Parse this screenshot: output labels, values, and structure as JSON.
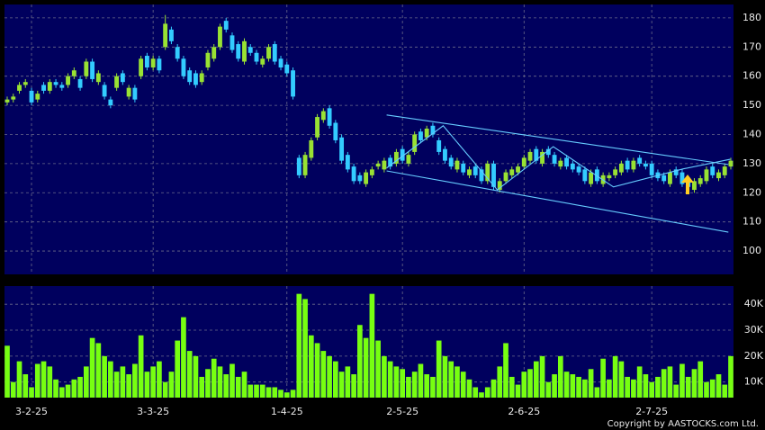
{
  "chart_data": {
    "type": "candlestick",
    "categories": [
      null,
      null,
      null,
      null,
      "3-2-25",
      null,
      null,
      null,
      null,
      null,
      null,
      null,
      null,
      null,
      null,
      null,
      null,
      null,
      null,
      null,
      null,
      null,
      null,
      null,
      "3-3-25",
      null,
      null,
      null,
      null,
      null,
      null,
      null,
      null,
      null,
      null,
      null,
      null,
      null,
      null,
      null,
      null,
      null,
      null,
      null,
      null,
      null,
      "1-4-25",
      null,
      null,
      null,
      null,
      null,
      null,
      null,
      null,
      null,
      null,
      null,
      null,
      null,
      null,
      null,
      null,
      null,
      null,
      "2-5-25",
      null,
      null,
      null,
      null,
      null,
      null,
      null,
      null,
      null,
      null,
      null,
      null,
      null,
      null,
      null,
      null,
      null,
      null,
      null,
      "2-6-25",
      null,
      null,
      null,
      null,
      null,
      null,
      null,
      null,
      null,
      null,
      null,
      null,
      null,
      null,
      null,
      null,
      null,
      null,
      null,
      null,
      "2-7-25",
      null,
      null,
      null,
      null,
      null,
      null,
      null,
      null,
      null,
      null,
      null,
      null,
      null
    ],
    "open": [
      151,
      152,
      155,
      157,
      155,
      152,
      157,
      155,
      158,
      157,
      157,
      160,
      159,
      160,
      165,
      158,
      157,
      152,
      156,
      161,
      153,
      156,
      160,
      167,
      163,
      166,
      170,
      176,
      170,
      166,
      162,
      161,
      158,
      163,
      166,
      170,
      179,
      174,
      171,
      165,
      170,
      168,
      164,
      166,
      171,
      166,
      164,
      162,
      132,
      126,
      132,
      139,
      145,
      149,
      144,
      139,
      133,
      129,
      126,
      123,
      126,
      129,
      128,
      132,
      130,
      135,
      130,
      134,
      141,
      139,
      143,
      138,
      135,
      132,
      128,
      130,
      126,
      129,
      128,
      124,
      130,
      121,
      124,
      126,
      127,
      129,
      131,
      135,
      130,
      135,
      133,
      129,
      132,
      130,
      129,
      128,
      123,
      128,
      123,
      125,
      126,
      127,
      131,
      128,
      132,
      130,
      130,
      127,
      126,
      123,
      128,
      127,
      124,
      121,
      123,
      124,
      129,
      125,
      126,
      129
    ],
    "high": [
      153,
      154,
      158,
      159,
      156,
      155,
      158,
      159,
      159,
      158,
      161,
      163,
      160,
      166,
      166,
      162,
      158,
      153,
      161,
      162,
      157,
      157,
      167,
      168,
      167,
      167,
      181,
      177,
      171,
      167,
      163,
      162,
      162,
      169,
      171,
      178,
      180,
      175,
      172,
      173,
      171,
      169,
      167,
      171,
      172,
      167,
      165,
      163,
      133,
      134,
      139,
      147,
      149,
      150,
      145,
      140,
      134,
      130,
      127,
      128,
      129,
      131,
      132,
      133,
      135,
      136,
      134,
      141,
      142,
      143,
      144,
      139,
      136,
      133,
      132,
      131,
      129,
      130,
      129,
      131,
      131,
      125,
      128,
      129,
      130,
      133,
      135,
      136,
      135,
      136,
      134,
      132,
      133,
      131,
      130,
      129,
      128,
      129,
      127,
      127,
      129,
      131,
      132,
      132,
      133,
      131,
      131,
      128,
      127,
      128,
      129,
      128,
      125,
      125,
      126,
      129,
      130,
      128,
      130,
      132
    ],
    "low": [
      150,
      151,
      154,
      156,
      150,
      151,
      154,
      154,
      156,
      155,
      156,
      159,
      155,
      159,
      158,
      157,
      152,
      149,
      155,
      157,
      152,
      151,
      159,
      162,
      162,
      161,
      169,
      171,
      165,
      159,
      157,
      156,
      157,
      162,
      165,
      169,
      175,
      168,
      165,
      164,
      167,
      164,
      163,
      165,
      164,
      162,
      160,
      152,
      125,
      125,
      131,
      138,
      144,
      142,
      137,
      130,
      127,
      123,
      123,
      122,
      125,
      128,
      127,
      128,
      129,
      130,
      129,
      133,
      137,
      138,
      139,
      133,
      130,
      128,
      127,
      126,
      125,
      125,
      123,
      123,
      121,
      120,
      123,
      125,
      126,
      128,
      130,
      130,
      129,
      132,
      129,
      128,
      128,
      127,
      126,
      123,
      122,
      123,
      122,
      124,
      125,
      126,
      127,
      127,
      129,
      128,
      125,
      124,
      123,
      122,
      125,
      122,
      121,
      120,
      122,
      123,
      125,
      124,
      125,
      128
    ],
    "close": [
      152,
      153,
      157,
      158,
      151,
      154,
      155,
      158,
      157,
      156,
      160,
      162,
      156,
      165,
      159,
      161,
      153,
      150,
      160,
      158,
      156,
      152,
      166,
      163,
      166,
      162,
      178,
      172,
      166,
      160,
      158,
      157,
      161,
      168,
      170,
      177,
      176,
      169,
      166,
      172,
      168,
      165,
      166,
      170,
      165,
      163,
      161,
      153,
      126,
      133,
      138,
      146,
      148,
      143,
      138,
      131,
      128,
      124,
      124,
      127,
      128,
      130,
      131,
      129,
      134,
      131,
      133,
      140,
      138,
      142,
      140,
      134,
      131,
      129,
      131,
      127,
      128,
      126,
      124,
      130,
      122,
      124,
      127,
      128,
      129,
      132,
      134,
      131,
      134,
      133,
      130,
      131,
      129,
      128,
      127,
      124,
      127,
      124,
      126,
      126,
      128,
      130,
      128,
      131,
      130,
      129,
      126,
      125,
      124,
      127,
      126,
      123,
      122,
      124,
      125,
      128,
      126,
      127,
      129,
      131
    ],
    "volume": [
      24000,
      10000,
      18000,
      13000,
      8000,
      17000,
      18000,
      16000,
      11000,
      8000,
      9000,
      11000,
      12000,
      16000,
      27000,
      25000,
      20000,
      18000,
      14000,
      16000,
      13000,
      17000,
      28000,
      14000,
      16000,
      18000,
      10000,
      14000,
      26000,
      35000,
      22000,
      20000,
      12000,
      15000,
      19000,
      16000,
      13000,
      17000,
      12000,
      14000,
      9000,
      9000,
      9000,
      8000,
      8000,
      7000,
      6000,
      7000,
      44000,
      42000,
      28000,
      25000,
      22000,
      20000,
      18000,
      14000,
      16000,
      13000,
      32000,
      27000,
      44000,
      26000,
      20000,
      18000,
      16000,
      15000,
      12000,
      14000,
      17000,
      13000,
      12000,
      26000,
      20000,
      18000,
      16000,
      14000,
      11000,
      8000,
      6000,
      8000,
      11000,
      16000,
      25000,
      12000,
      9000,
      14000,
      15000,
      18000,
      20000,
      10000,
      13000,
      20000,
      14000,
      13000,
      12000,
      11000,
      15000,
      8000,
      19000,
      11000,
      20000,
      18000,
      12000,
      11000,
      16000,
      13000,
      10000,
      12000,
      15000,
      16000,
      9000,
      17000,
      12000,
      15000,
      18000,
      10000,
      11000,
      13000,
      9000,
      20000
    ],
    "up_color": "#99e233",
    "down_color": "#33ccff",
    "volume_color": "#77ff11",
    "line_color": "#66ccff",
    "ylim": [
      92,
      184.6
    ],
    "yticks": [
      100,
      110,
      120,
      130,
      140,
      150,
      160,
      170,
      180
    ],
    "y2lim": [
      4000,
      47000
    ],
    "y2ticks": [
      {
        "value": 10000,
        "label": "10K"
      },
      {
        "value": 20000,
        "label": "20K"
      },
      {
        "value": 30000,
        "label": "30K"
      },
      {
        "value": 40000,
        "label": "40K"
      }
    ],
    "grid": true,
    "trend_lines": [
      {
        "x": [
          62.4,
          118.6
        ],
        "values": [
          146.7,
          129.7
        ]
      },
      {
        "x": [
          62.4,
          118.6
        ],
        "values": [
          127.5,
          106.5
        ]
      },
      {
        "x": [
          62.4,
          71.7,
          80.6,
          89.8,
          99.7,
          111.2,
          118.9
        ],
        "values": [
          128.5,
          143,
          121,
          135.8,
          122,
          128.2,
          131.5
        ]
      }
    ],
    "copyright": "Copyright by AASTOCKS.com Ltd."
  }
}
